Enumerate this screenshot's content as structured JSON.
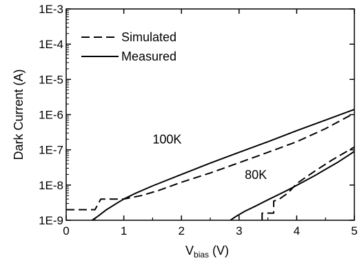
{
  "chart_data": {
    "type": "line",
    "title": "",
    "xlabel_main": "V",
    "xlabel_sub": "bias",
    "xlabel_unit": " (V)",
    "ylabel": "Dark Current (A)",
    "xlim": [
      0,
      5
    ],
    "ylim": [
      1e-09,
      0.001
    ],
    "yscale": "log",
    "grid": false,
    "legend_position": "top-left",
    "x_ticks": [
      "0",
      "1",
      "2",
      "3",
      "4",
      "5"
    ],
    "y_ticks": [
      "1E-9",
      "1E-8",
      "1E-7",
      "1E-6",
      "1E-5",
      "1E-4",
      "1E-3"
    ],
    "legend": [
      {
        "label": "Simulated",
        "style": "dashed"
      },
      {
        "label": "Measured",
        "style": "solid"
      }
    ],
    "annotations": [
      {
        "text": "100K",
        "x": 1.5,
        "y": 1.5e-07
      },
      {
        "text": "80K",
        "x": 3.1,
        "y": 1.5e-08
      }
    ],
    "series": [
      {
        "curve": "100K",
        "style": "solid",
        "x": [
          0.45,
          0.55,
          0.7,
          0.9,
          1.0,
          1.2,
          1.5,
          2.0,
          2.5,
          3.0,
          3.5,
          4.0,
          4.5,
          5.0
        ],
        "y": [
          1e-09,
          1.3e-09,
          2e-09,
          3.2e-09,
          4e-09,
          5.8e-09,
          9.5e-09,
          2e-08,
          4.2e-08,
          8.5e-08,
          1.7e-07,
          3.5e-07,
          7e-07,
          1.4e-06
        ]
      },
      {
        "curve": "100K",
        "style": "dashed",
        "x": [
          0.0,
          0.5,
          0.6,
          0.75,
          1.0,
          1.3,
          1.6,
          2.0,
          2.5,
          3.0,
          3.5,
          4.0,
          4.5,
          5.0
        ],
        "y": [
          2e-09,
          2e-09,
          4e-09,
          4e-09,
          4e-09,
          5e-09,
          7e-09,
          1.2e-08,
          2.2e-08,
          4.3e-08,
          8.5e-08,
          1.7e-07,
          4e-07,
          1.1e-06
        ]
      },
      {
        "curve": "80K",
        "style": "solid",
        "x": [
          2.85,
          2.95,
          3.1,
          3.3,
          3.5,
          3.7,
          3.9,
          4.1,
          4.3,
          4.5,
          4.7,
          5.0
        ],
        "y": [
          1e-09,
          1.3e-09,
          1.8e-09,
          2.6e-09,
          3.8e-09,
          5.5e-09,
          8e-09,
          1.2e-08,
          1.8e-08,
          2.8e-08,
          4.3e-08,
          9e-08
        ]
      },
      {
        "curve": "80K",
        "style": "dashed",
        "x": [
          3.4,
          3.4,
          3.45,
          3.55,
          3.6,
          3.6,
          3.7,
          3.85,
          4.0,
          4.3,
          4.6,
          5.0
        ],
        "y": [
          1e-09,
          1.6e-09,
          1.6e-09,
          1.6e-09,
          1.6e-09,
          3.5e-09,
          4e-09,
          6e-09,
          1.1e-08,
          2.4e-08,
          5e-08,
          1.2e-07
        ]
      }
    ]
  }
}
